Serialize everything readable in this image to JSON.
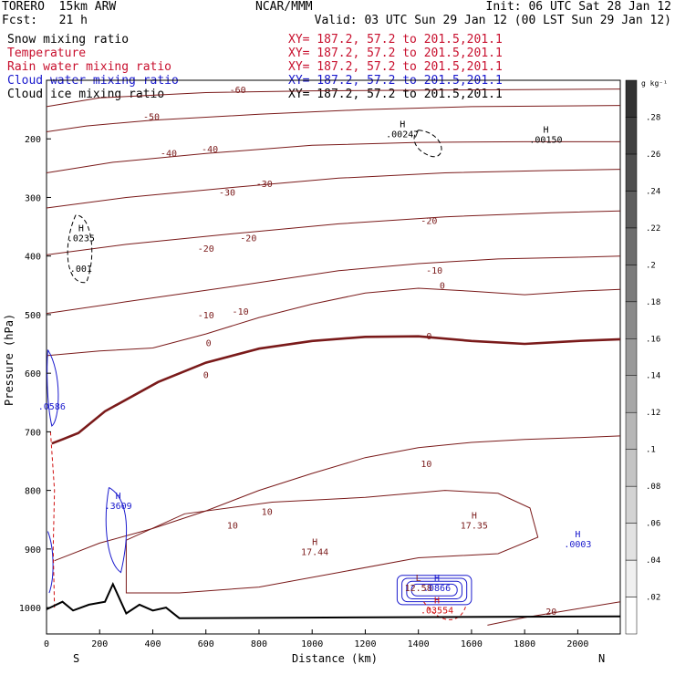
{
  "header": {
    "model": "TORERO  15km ARW",
    "center": "NCAR/MMM",
    "init": "Init: 06 UTC Sat 28 Jan 12",
    "fcst": "Fcst:   21 h",
    "valid": "Valid: 03 UTC Sun 29 Jan 12 (00 LST Sun 29 Jan 12)",
    "fields": [
      {
        "name": "Snow mixing ratio",
        "xy": "XY= 187.2, 57.2 to 201.5,201.1"
      },
      {
        "name": "Temperature",
        "xy": "XY= 187.2, 57.2 to 201.5,201.1"
      },
      {
        "name": "Rain water mixing ratio",
        "xy": "XY= 187.2, 57.2 to 201.5,201.1"
      },
      {
        "name": "Cloud water mixing ratio",
        "xy": "XY= 187.2, 57.2 to 201.5,201.1"
      },
      {
        "name": "Cloud ice mixing ratio",
        "xy": "XY= 187.2, 57.2 to 201.5,201.1"
      }
    ]
  },
  "colors": {
    "temperature": "#7a1a1a",
    "rain": "#d01010",
    "cloud_water": "#1a1acd",
    "snow": "#000000",
    "ice": "#000000",
    "terrain": "#000000"
  },
  "chart_data": {
    "type": "cross-section contour",
    "xlabel": "Distance (km)",
    "ylabel": "Pressure (hPa)",
    "xlim": [
      0,
      2160
    ],
    "ylim": [
      1045,
      100
    ],
    "xticks": [
      0,
      200,
      400,
      600,
      800,
      1000,
      1200,
      1400,
      1600,
      1800,
      2000
    ],
    "yticks": [
      200,
      300,
      400,
      500,
      600,
      700,
      800,
      900,
      1000
    ],
    "left_end": "S",
    "right_end": "N",
    "colorbar": {
      "unit": "g kg⁻¹",
      "ticks": [
        ".02",
        ".04",
        ".06",
        ".08",
        ".1",
        ".12",
        ".14",
        ".16",
        ".18",
        ".2",
        ".22",
        ".24",
        ".26",
        ".28"
      ]
    },
    "isotherms": [
      {
        "level": -60,
        "points": [
          [
            0,
            145
          ],
          [
            200,
            130
          ],
          [
            600,
            121
          ],
          [
            1000,
            118
          ],
          [
            1400,
            117
          ],
          [
            1800,
            116
          ],
          [
            2160,
            115
          ]
        ],
        "labels": [
          [
            720,
            122,
            "-60"
          ]
        ]
      },
      {
        "level": -50,
        "points": [
          [
            0,
            188
          ],
          [
            150,
            178
          ],
          [
            400,
            168
          ],
          [
            800,
            158
          ],
          [
            1200,
            150
          ],
          [
            1600,
            145
          ],
          [
            2160,
            143
          ]
        ],
        "labels": [
          [
            395,
            168,
            "-50"
          ]
        ]
      },
      {
        "level": -40,
        "points": [
          [
            0,
            258
          ],
          [
            250,
            240
          ],
          [
            600,
            225
          ],
          [
            1000,
            211
          ],
          [
            1400,
            206
          ],
          [
            1800,
            205
          ],
          [
            2160,
            205
          ]
        ],
        "labels": [
          [
            460,
            230,
            "-40"
          ],
          [
            615,
            223,
            "-40"
          ]
        ]
      },
      {
        "level": -30,
        "points": [
          [
            0,
            318
          ],
          [
            300,
            300
          ],
          [
            700,
            283
          ],
          [
            1100,
            267
          ],
          [
            1500,
            258
          ],
          [
            1900,
            254
          ],
          [
            2160,
            252
          ]
        ],
        "labels": [
          [
            680,
            297,
            "-30"
          ],
          [
            820,
            282,
            "-30"
          ]
        ]
      },
      {
        "level": -20,
        "points": [
          [
            0,
            398
          ],
          [
            300,
            380
          ],
          [
            700,
            362
          ],
          [
            1100,
            345
          ],
          [
            1500,
            333
          ],
          [
            1900,
            326
          ],
          [
            2160,
            323
          ]
        ],
        "labels": [
          [
            600,
            393,
            "-20"
          ],
          [
            760,
            375,
            "-20"
          ],
          [
            1440,
            345,
            "-20"
          ]
        ]
      },
      {
        "level": -10,
        "points": [
          [
            0,
            498
          ],
          [
            300,
            478
          ],
          [
            700,
            452
          ],
          [
            1100,
            425
          ],
          [
            1400,
            413
          ],
          [
            1700,
            405
          ],
          [
            2000,
            402
          ],
          [
            2160,
            400
          ]
        ],
        "labels": [
          [
            600,
            506,
            "-10"
          ],
          [
            730,
            500,
            "-10"
          ],
          [
            1460,
            430,
            "-10"
          ]
        ]
      },
      {
        "level": 0,
        "points": [
          [
            0,
            570
          ],
          [
            200,
            562
          ],
          [
            400,
            557
          ],
          [
            600,
            533
          ],
          [
            800,
            505
          ],
          [
            1000,
            482
          ],
          [
            1200,
            463
          ],
          [
            1400,
            455
          ],
          [
            1600,
            460
          ],
          [
            1800,
            466
          ],
          [
            2000,
            460
          ],
          [
            2160,
            457
          ]
        ],
        "labels": [
          [
            610,
            554,
            "0"
          ],
          [
            1490,
            456,
            "0"
          ]
        ]
      },
      {
        "level": 10,
        "points": [
          [
            30,
            920
          ],
          [
            200,
            890
          ],
          [
            400,
            865
          ],
          [
            600,
            835
          ],
          [
            800,
            800
          ],
          [
            1000,
            771
          ],
          [
            1200,
            744
          ],
          [
            1400,
            727
          ],
          [
            1600,
            718
          ],
          [
            1800,
            713
          ],
          [
            2000,
            710
          ],
          [
            2160,
            707
          ]
        ],
        "labels": [
          [
            700,
            865,
            "10"
          ],
          [
            830,
            842,
            "10"
          ],
          [
            1430,
            760,
            "10"
          ]
        ]
      },
      {
        "level": 20,
        "points": [
          [
            1660,
            1030
          ],
          [
            1800,
            1017
          ],
          [
            2000,
            1002
          ],
          [
            2160,
            990
          ]
        ],
        "labels": [
          [
            1900,
            1012,
            "20"
          ]
        ]
      }
    ],
    "freezing_bold": {
      "points": [
        [
          20,
          720
        ],
        [
          60,
          713
        ],
        [
          120,
          702
        ],
        [
          220,
          665
        ],
        [
          420,
          615
        ],
        [
          600,
          582
        ],
        [
          800,
          558
        ],
        [
          1000,
          545
        ],
        [
          1200,
          538
        ],
        [
          1400,
          537
        ],
        [
          1600,
          545
        ],
        [
          1800,
          550
        ],
        [
          2000,
          545
        ],
        [
          2160,
          542
        ]
      ],
      "labels": [
        [
          600,
          608,
          "0"
        ],
        [
          1440,
          542,
          "0"
        ]
      ]
    },
    "warm_region": [
      [
        300,
        885
      ],
      [
        520,
        840
      ],
      [
        850,
        820
      ],
      [
        1200,
        812
      ],
      [
        1500,
        800
      ],
      [
        1700,
        805
      ],
      [
        1820,
        830
      ],
      [
        1850,
        880
      ],
      [
        1700,
        908
      ],
      [
        1400,
        915
      ],
      [
        1100,
        940
      ],
      [
        800,
        965
      ],
      [
        500,
        975
      ],
      [
        300,
        975
      ]
    ],
    "highs": [
      {
        "x": 1340,
        "p": 197,
        "label": "H",
        "value": ".00247",
        "color": "snow"
      },
      {
        "x": 1880,
        "p": 207,
        "label": "H",
        "value": ".00150",
        "color": "snow"
      },
      {
        "x": 130,
        "p": 375,
        "label": "H",
        "value": ".0235",
        "color": "snow"
      },
      {
        "x": 130,
        "p": 427,
        "label": "",
        "value": ".001",
        "color": "snow"
      },
      {
        "x": 1610,
        "p": 865,
        "label": "H",
        "value": "17.35",
        "color": "temperature"
      },
      {
        "x": 1010,
        "p": 910,
        "label": "H",
        "value": "17.44",
        "color": "temperature"
      },
      {
        "x": 2000,
        "p": 897,
        "label": "H",
        "value": ".0003",
        "color": "cloud_water"
      },
      {
        "x": 270,
        "p": 832,
        "label": "H",
        "value": ".3609",
        "color": "cloud_water"
      },
      {
        "x": 1400,
        "p": 972,
        "label": "L",
        "value": "12.58",
        "color": "temperature"
      },
      {
        "x": 1470,
        "p": 972,
        "label": "H",
        "value": ".0866",
        "color": "cloud_water"
      },
      {
        "x": 1470,
        "p": 1010,
        "label": "H",
        "value": ".03554",
        "color": "rain"
      },
      {
        "x": 20,
        "p": 662,
        "label": "",
        "value": ".0586",
        "color": "cloud_water"
      }
    ],
    "terrain": [
      [
        0,
        1003
      ],
      [
        60,
        990
      ],
      [
        100,
        1005
      ],
      [
        160,
        995
      ],
      [
        220,
        990
      ],
      [
        250,
        960
      ],
      [
        300,
        1010
      ],
      [
        350,
        995
      ],
      [
        400,
        1005
      ],
      [
        450,
        1000
      ],
      [
        500,
        1018
      ],
      [
        2160,
        1015
      ]
    ]
  }
}
